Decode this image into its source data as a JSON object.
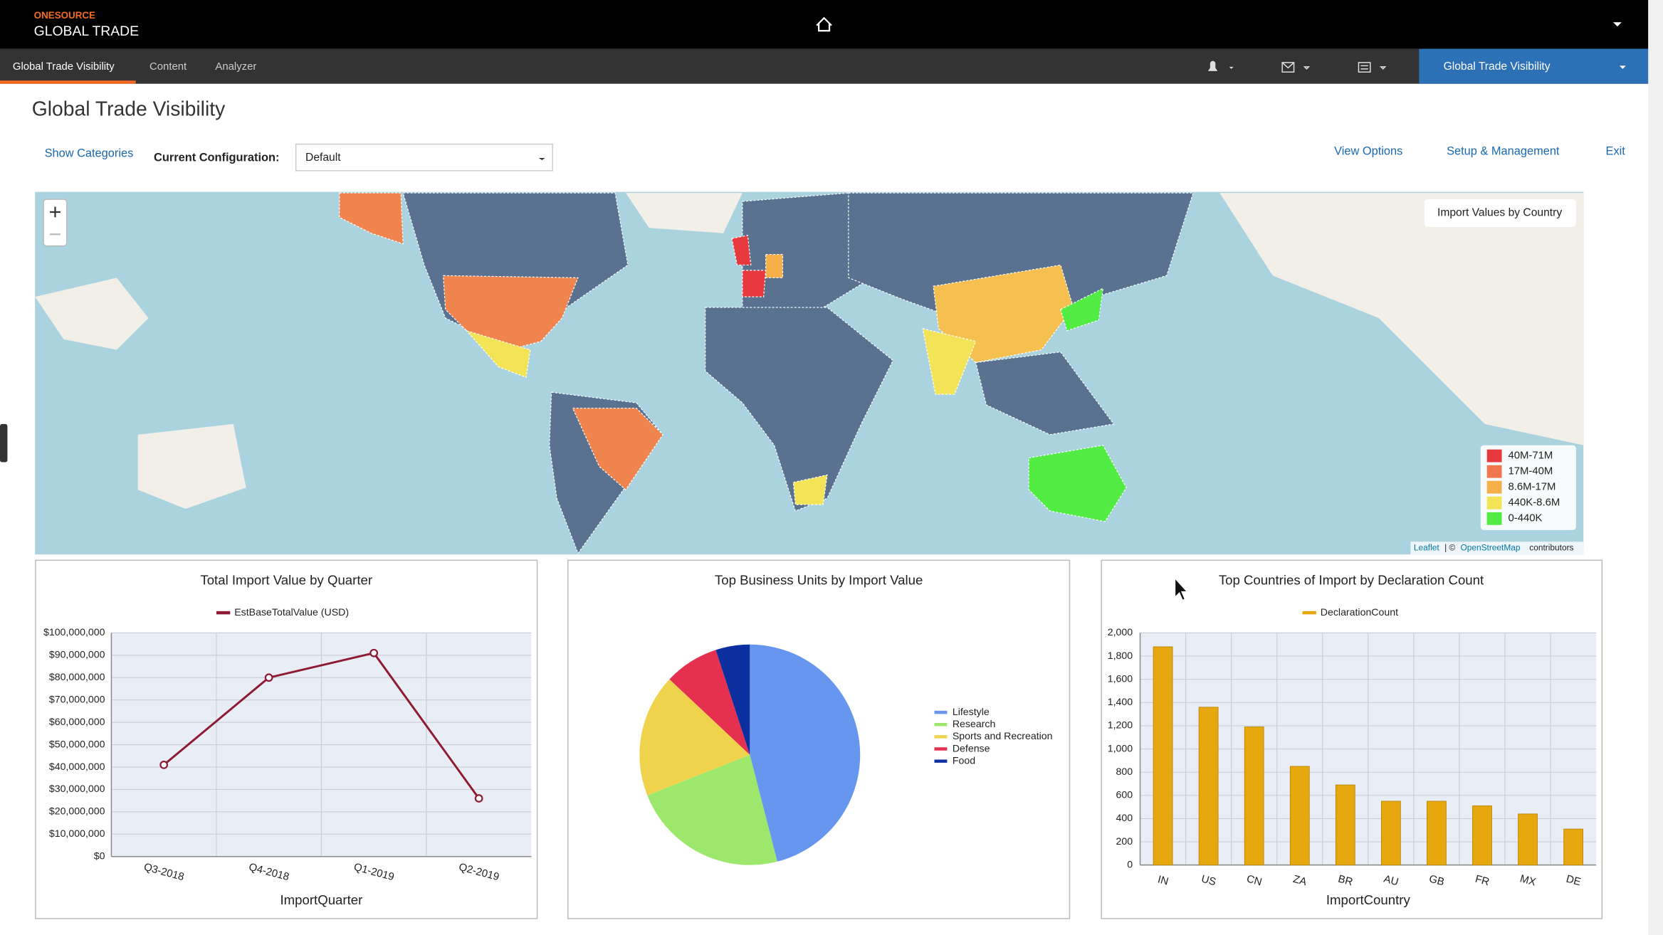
{
  "header": {
    "brand": "ONESOURCE",
    "product": "GLOBAL TRADE"
  },
  "nav": {
    "tabs": [
      "Global Trade Visibility",
      "Content",
      "Analyzer"
    ],
    "module": "Global Trade Visibility"
  },
  "page": {
    "title": "Global Trade Visibility",
    "show_categories": "Show Categories",
    "config_label": "Current Configuration:",
    "config_value": "Default",
    "links": [
      "View Options",
      "Setup & Management",
      "Exit"
    ]
  },
  "map": {
    "title": "Import Values by Country",
    "legend": [
      {
        "label": "40M-71M",
        "color": "#e8393f"
      },
      {
        "label": "17M-40M",
        "color": "#f0764e"
      },
      {
        "label": "8.6M-17M",
        "color": "#f5b04a"
      },
      {
        "label": "440K-8.6M",
        "color": "#f3e457"
      },
      {
        "label": "0-440K",
        "color": "#52ec45"
      }
    ],
    "attribution": [
      "Leaflet",
      "| ©",
      "OpenStreetMap",
      "contributors"
    ]
  },
  "chart_data": [
    {
      "type": "line",
      "title": "Total Import Value by Quarter",
      "x_label": "ImportQuarter",
      "categories": [
        "Q3-2018",
        "Q4-2018",
        "Q1-2019",
        "Q2-2019"
      ],
      "series": [
        {
          "name": "EstBaseTotalValue (USD)",
          "color": "#8e1b33",
          "values": [
            41000000,
            80000000,
            91000000,
            26000000
          ]
        }
      ],
      "ylim": [
        0,
        100000000
      ],
      "yticks": [
        {
          "value": 0,
          "label": "$0"
        },
        {
          "value": 10000000,
          "label": "$10,000,000"
        },
        {
          "value": 20000000,
          "label": "$20,000,000"
        },
        {
          "value": 30000000,
          "label": "$30,000,000"
        },
        {
          "value": 40000000,
          "label": "$40,000,000"
        },
        {
          "value": 50000000,
          "label": "$50,000,000"
        },
        {
          "value": 60000000,
          "label": "$60,000,000"
        },
        {
          "value": 70000000,
          "label": "$70,000,000"
        },
        {
          "value": 80000000,
          "label": "$80,000,000"
        },
        {
          "value": 90000000,
          "label": "$90,000,000"
        },
        {
          "value": 100000000,
          "label": "$100,000,000"
        }
      ],
      "grid": true
    },
    {
      "type": "pie",
      "title": "Top Business Units by Import Value",
      "categories": [
        "Lifestyle",
        "Research",
        "Sports and Recreation",
        "Defense",
        "Food"
      ],
      "values": [
        46,
        23,
        18,
        8,
        5
      ],
      "colors": [
        "#6796ee",
        "#9de86c",
        "#efd34c",
        "#e6304f",
        "#0c2fa0"
      ]
    },
    {
      "type": "bar",
      "title": "Top Countries of Import by Declaration Count",
      "x_label": "ImportCountry",
      "categories": [
        "IN",
        "US",
        "CN",
        "ZA",
        "BR",
        "AU",
        "GB",
        "FR",
        "MX",
        "DE"
      ],
      "series": [
        {
          "name": "DeclarationCount",
          "color": "#e6a70f",
          "values": [
            1880,
            1360,
            1190,
            850,
            690,
            550,
            550,
            510,
            440,
            310
          ]
        }
      ],
      "ylim": [
        0,
        2000
      ],
      "yticks": [
        0,
        200,
        400,
        600,
        800,
        {
          "value": 1000,
          "label": "1,000"
        },
        {
          "value": 1200,
          "label": "1,200"
        },
        {
          "value": 1400,
          "label": "1,400"
        },
        {
          "value": 1600,
          "label": "1,600"
        },
        {
          "value": 1800,
          "label": "1,800"
        },
        {
          "value": 2000,
          "label": "2,000"
        }
      ],
      "grid": true
    }
  ]
}
